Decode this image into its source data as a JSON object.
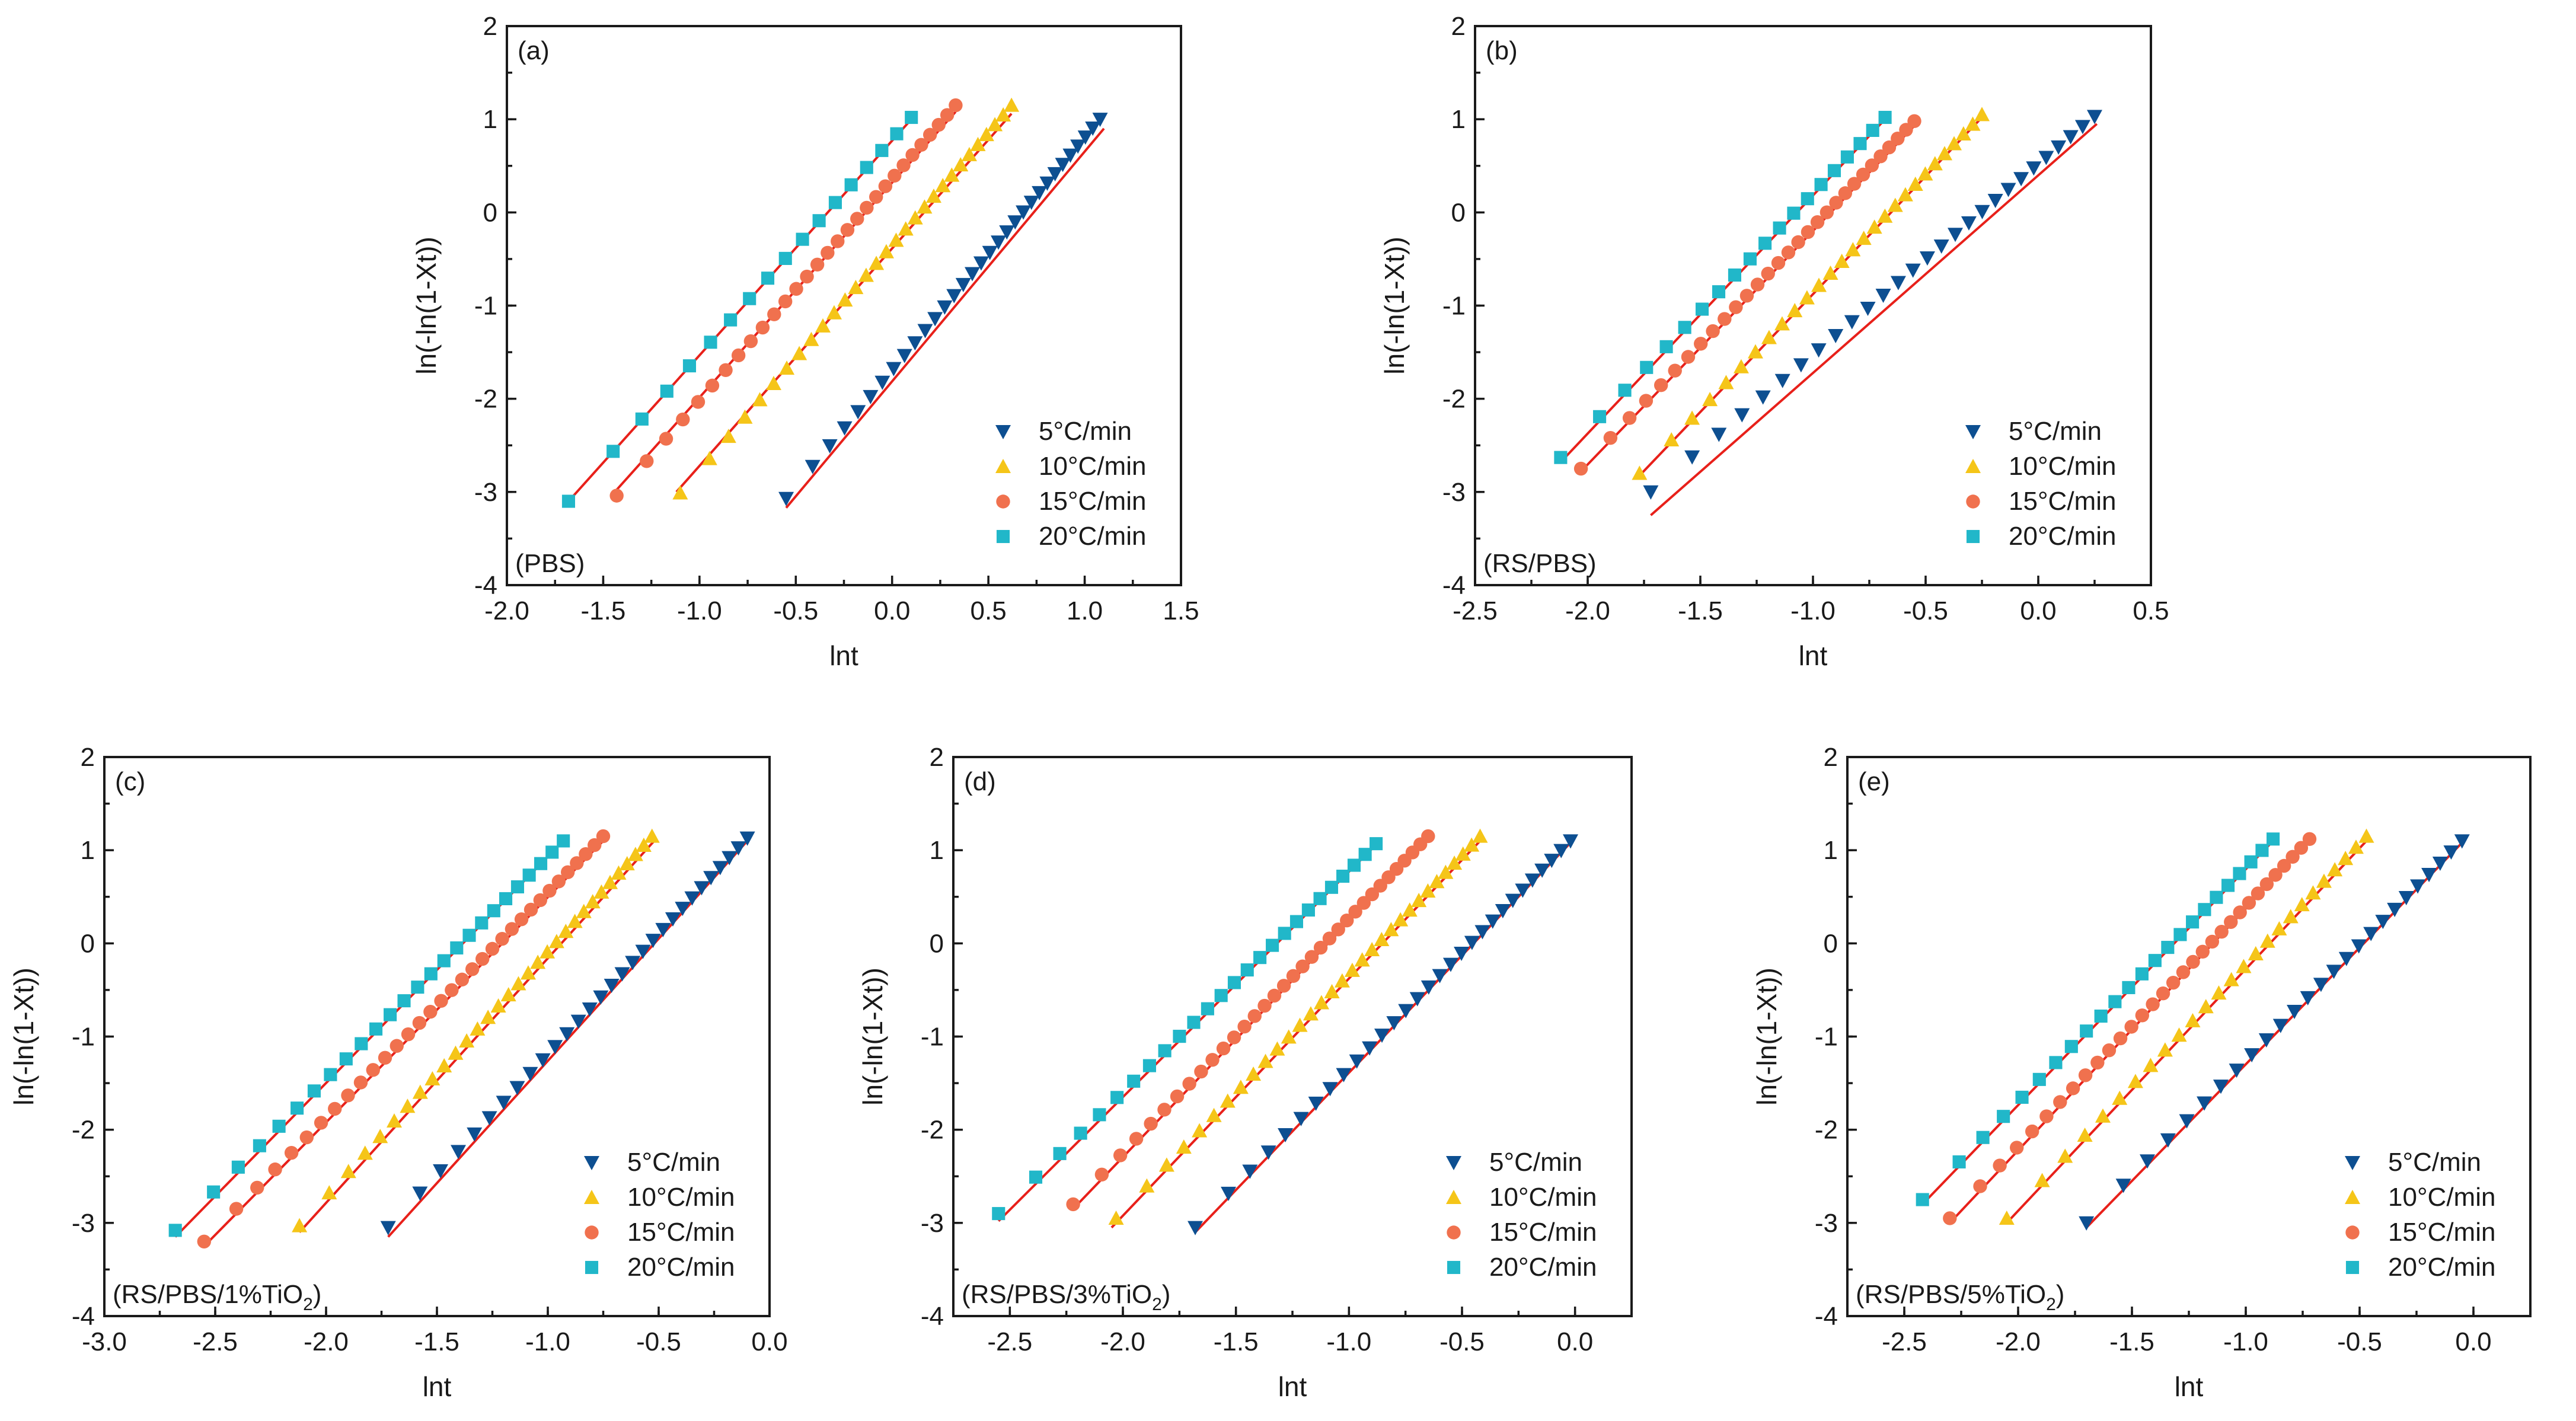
{
  "series_styles": [
    {
      "label": "5°C/min",
      "marker": "triangle-down",
      "color": "#0d4f91"
    },
    {
      "label": "10°C/min",
      "marker": "triangle-up",
      "color": "#f5c518"
    },
    {
      "label": "15°C/min",
      "marker": "circle",
      "color": "#f0714e"
    },
    {
      "label": "20°C/min",
      "marker": "square",
      "color": "#21b7c9"
    }
  ],
  "fit_line_color": "#e8201a",
  "chart_data": [
    {
      "type": "scatter",
      "panel_label": "(a)",
      "sample_label": "(PBS)",
      "xlabel": "lnt",
      "ylabel": "ln(-ln(1-Xt))",
      "xlim": [
        -2.0,
        1.5
      ],
      "ylim": [
        -4,
        2
      ],
      "xticks": [
        "-2.0",
        "-1.5",
        "-1.0",
        "-0.5",
        "0.0",
        "0.5",
        "1.0",
        "1.5"
      ],
      "yticks": [
        "-4",
        "-3",
        "-2",
        "-1",
        "0",
        "1",
        "2"
      ],
      "series": [
        {
          "name": "5°C/min",
          "x_start": -0.55,
          "x_end": 1.08,
          "y_start": -3.07,
          "y_end": 1.0,
          "points": 32,
          "fit": [
            [
              -0.55,
              -3.17
            ],
            [
              1.1,
              0.9
            ]
          ]
        },
        {
          "name": "10°C/min",
          "x_start": -1.1,
          "x_end": 0.62,
          "y_start": -3.01,
          "y_end": 1.15,
          "points": 30,
          "fit": [
            [
              -1.12,
              -3.0
            ],
            [
              0.62,
              1.06
            ]
          ]
        },
        {
          "name": "15°C/min",
          "x_start": -1.43,
          "x_end": 0.33,
          "y_start": -3.04,
          "y_end": 1.15,
          "points": 30,
          "fit": [
            [
              -1.44,
              -3.0
            ],
            [
              0.33,
              1.08
            ]
          ]
        },
        {
          "name": "20°C/min",
          "x_start": -1.68,
          "x_end": 0.1,
          "y_start": -3.1,
          "y_end": 1.02,
          "points": 18,
          "fit": [
            [
              -1.68,
              -3.1
            ],
            [
              0.1,
              1.0
            ]
          ]
        }
      ]
    },
    {
      "type": "scatter",
      "panel_label": "(b)",
      "sample_label": "(RS/PBS)",
      "xlabel": "lnt",
      "ylabel": "ln(-ln(1-Xt))",
      "xlim": [
        -2.5,
        0.5
      ],
      "ylim": [
        -4,
        2
      ],
      "xticks": [
        "-2.5",
        "-2.0",
        "-1.5",
        "-1.0",
        "-0.5",
        "0.0",
        "0.5"
      ],
      "yticks": [
        "-4",
        "-3",
        "-2",
        "-1",
        "0",
        "1",
        "2"
      ],
      "series": [
        {
          "name": "5°C/min",
          "x_start": -1.72,
          "x_end": 0.25,
          "y_start": -3.0,
          "y_end": 1.03,
          "points": 28,
          "fit": [
            [
              -1.72,
              -3.25
            ],
            [
              0.26,
              0.95
            ]
          ]
        },
        {
          "name": "10°C/min",
          "x_start": -1.77,
          "x_end": -0.25,
          "y_start": -2.8,
          "y_end": 1.05,
          "points": 28,
          "fit": [
            [
              -1.78,
              -2.85
            ],
            [
              -0.25,
              1.02
            ]
          ]
        },
        {
          "name": "15°C/min",
          "x_start": -2.03,
          "x_end": -0.55,
          "y_start": -2.75,
          "y_end": 0.98,
          "points": 30,
          "fit": [
            [
              -2.03,
              -2.78
            ],
            [
              -0.53,
              0.98
            ]
          ]
        },
        {
          "name": "20°C/min",
          "x_start": -2.12,
          "x_end": -0.68,
          "y_start": -2.63,
          "y_end": 1.02,
          "points": 20,
          "fit": [
            [
              -2.12,
              -2.68
            ],
            [
              -0.68,
              1.0
            ]
          ]
        }
      ]
    },
    {
      "type": "scatter",
      "panel_label": "(c)",
      "sample_label": "(RS/PBS/1%TiO",
      "sample_label_sub": "2",
      "sample_label_end": ")",
      "xlabel": "lnt",
      "ylabel": "ln(-ln(1-Xt))",
      "xlim": [
        -3.0,
        0.0
      ],
      "ylim": [
        -4,
        2
      ],
      "xticks": [
        "-3.0",
        "-2.5",
        "-2.0",
        "-1.5",
        "-1.0",
        "-0.5",
        "0.0"
      ],
      "yticks": [
        "-4",
        "-3",
        "-2",
        "-1",
        "0",
        "1",
        "2"
      ],
      "series": [
        {
          "name": "5°C/min",
          "x_start": -1.72,
          "x_end": -0.1,
          "y_start": -3.05,
          "y_end": 1.13,
          "points": 30,
          "fit": [
            [
              -1.72,
              -3.15
            ],
            [
              -0.1,
              1.1
            ]
          ]
        },
        {
          "name": "10°C/min",
          "x_start": -2.12,
          "x_end": -0.53,
          "y_start": -3.03,
          "y_end": 1.15,
          "points": 32,
          "fit": [
            [
              -2.12,
              -3.1
            ],
            [
              -0.52,
              1.1
            ]
          ]
        },
        {
          "name": "15°C/min",
          "x_start": -2.55,
          "x_end": -0.75,
          "y_start": -3.2,
          "y_end": 1.15,
          "points": 34,
          "fit": [
            [
              -2.55,
              -3.25
            ],
            [
              -0.75,
              1.1
            ]
          ]
        },
        {
          "name": "20°C/min",
          "x_start": -2.68,
          "x_end": -0.93,
          "y_start": -3.08,
          "y_end": 1.1,
          "points": 26,
          "fit": [
            [
              -2.68,
              -3.15
            ],
            [
              -0.93,
              1.1
            ]
          ]
        }
      ]
    },
    {
      "type": "scatter",
      "panel_label": "(d)",
      "sample_label": "(RS/PBS/3%TiO",
      "sample_label_sub": "2",
      "sample_label_end": ")",
      "xlabel": "lnt",
      "ylabel": "ln(-ln(1-Xt))",
      "xlim": [
        -2.75,
        0.25
      ],
      "ylim": [
        -4,
        2
      ],
      "xticks": [
        "-2.5",
        "-2.0",
        "-1.5",
        "-1.0",
        "-0.5",
        "0.0"
      ],
      "yticks": [
        "-4",
        "-3",
        "-2",
        "-1",
        "0",
        "1",
        "2"
      ],
      "series": [
        {
          "name": "5°C/min",
          "x_start": -1.68,
          "x_end": -0.02,
          "y_start": -3.05,
          "y_end": 1.1,
          "points": 30,
          "fit": [
            [
              -1.68,
              -3.1
            ],
            [
              -0.02,
              1.08
            ]
          ]
        },
        {
          "name": "10°C/min",
          "x_start": -2.03,
          "x_end": -0.42,
          "y_start": -2.95,
          "y_end": 1.15,
          "points": 32,
          "fit": [
            [
              -2.05,
              -3.05
            ],
            [
              -0.42,
              1.1
            ]
          ]
        },
        {
          "name": "15°C/min",
          "x_start": -2.22,
          "x_end": -0.65,
          "y_start": -2.8,
          "y_end": 1.15,
          "points": 34,
          "fit": [
            [
              -2.22,
              -2.85
            ],
            [
              -0.65,
              1.12
            ]
          ]
        },
        {
          "name": "20°C/min",
          "x_start": -2.55,
          "x_end": -0.88,
          "y_start": -2.9,
          "y_end": 1.07,
          "points": 26,
          "fit": [
            [
              -2.55,
              -2.98
            ],
            [
              -0.88,
              1.06
            ]
          ]
        }
      ]
    },
    {
      "type": "scatter",
      "panel_label": "(e)",
      "sample_label": "(RS/PBS/5%TiO",
      "sample_label_sub": "2",
      "sample_label_end": ")",
      "xlabel": "lnt",
      "ylabel": "ln(-ln(1-Xt))",
      "xlim": [
        -2.75,
        0.25
      ],
      "ylim": [
        -4,
        2
      ],
      "xticks": [
        "-2.5",
        "-2.0",
        "-1.5",
        "-1.0",
        "-0.5",
        "0.0"
      ],
      "yticks": [
        "-4",
        "-3",
        "-2",
        "-1",
        "0",
        "1",
        "2"
      ],
      "series": [
        {
          "name": "5°C/min",
          "x_start": -1.7,
          "x_end": -0.05,
          "y_start": -3.0,
          "y_end": 1.1,
          "points": 26,
          "fit": [
            [
              -1.7,
              -3.05
            ],
            [
              -0.05,
              1.08
            ]
          ]
        },
        {
          "name": "10°C/min",
          "x_start": -2.05,
          "x_end": -0.47,
          "y_start": -2.95,
          "y_end": 1.15,
          "points": 26,
          "fit": [
            [
              -2.05,
              -3.0
            ],
            [
              -0.47,
              1.1
            ]
          ]
        },
        {
          "name": "15°C/min",
          "x_start": -2.3,
          "x_end": -0.72,
          "y_start": -2.95,
          "y_end": 1.12,
          "points": 32,
          "fit": [
            [
              -2.3,
              -3.0
            ],
            [
              -0.72,
              1.1
            ]
          ]
        },
        {
          "name": "20°C/min",
          "x_start": -2.42,
          "x_end": -0.88,
          "y_start": -2.75,
          "y_end": 1.12,
          "points": 24,
          "fit": [
            [
              -2.42,
              -2.8
            ],
            [
              -0.88,
              1.1
            ]
          ]
        }
      ]
    }
  ]
}
